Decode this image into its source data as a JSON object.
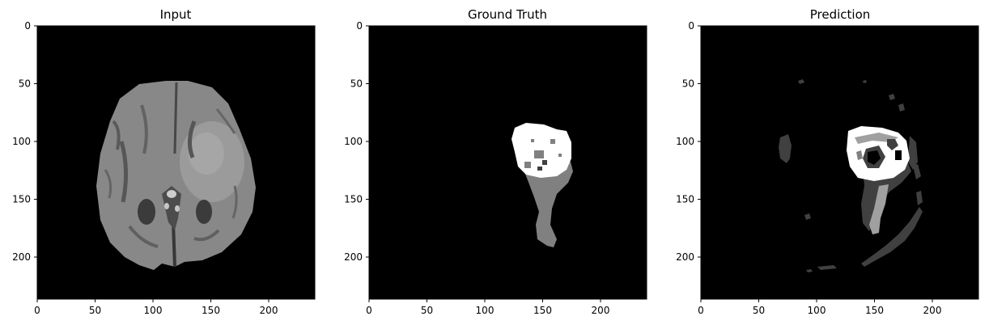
{
  "figure": {
    "background": "#ffffff",
    "image_size": [
      240,
      240
    ],
    "x_ticks": [
      "0",
      "50",
      "100",
      "150",
      "200"
    ],
    "y_ticks": [
      "0",
      "50",
      "100",
      "150",
      "200"
    ],
    "panels": [
      {
        "id": "input",
        "title": "Input",
        "colormap": "grayscale"
      },
      {
        "id": "ground-truth",
        "title": "Ground Truth",
        "colormap": "grayscale"
      },
      {
        "id": "prediction",
        "title": "Prediction",
        "colormap": "grayscale"
      }
    ]
  }
}
